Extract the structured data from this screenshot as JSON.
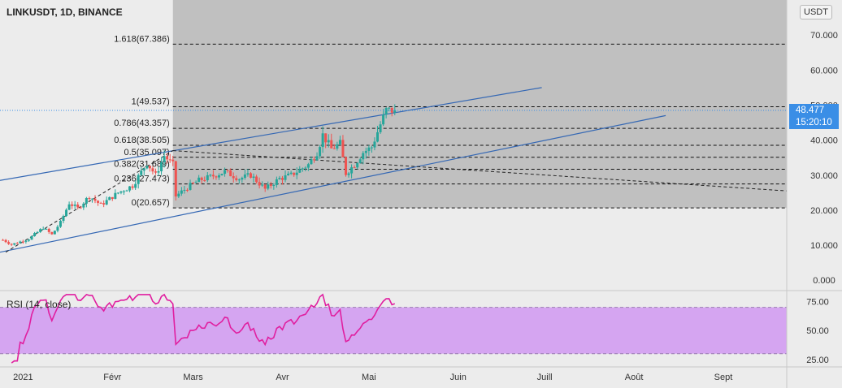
{
  "header": {
    "title": "LINKUSDT, 1D, BINANCE",
    "currency": "USDT"
  },
  "rsi": {
    "label": "RSI (14, close)",
    "ticks": [
      "75.00",
      "50.00",
      "25.00"
    ],
    "tick_values": [
      75,
      50,
      25
    ],
    "band": [
      30,
      70
    ],
    "range": [
      20,
      83
    ],
    "line_color": "#e01fa0",
    "band_color": "#d5a5f1"
  },
  "price_tag": {
    "price": "48.477",
    "countdown": "15:20:10",
    "color": "#3a8ee6"
  },
  "chart_data": {
    "type": "candlestick",
    "symbol": "LINKUSDT",
    "interval": "1D",
    "exchange": "BINANCE",
    "last_price": 48.477,
    "ylim": [
      -2.5,
      80
    ],
    "y_ticks": [
      0,
      10,
      20,
      30,
      40,
      50,
      60,
      70
    ],
    "y_tick_labels": [
      "0.000",
      "10.000",
      "20.000",
      "30.000",
      "40.000",
      "50.000",
      "60.000",
      "70.000"
    ],
    "x_range": [
      "2020-12-24",
      "2021-09-23"
    ],
    "x_ticks": [
      "2021-01-01",
      "2021-02-01",
      "2021-03-01",
      "2021-04-01",
      "2021-05-01",
      "2021-06-01",
      "2021-07-01",
      "2021-08-01",
      "2021-09-01"
    ],
    "x_tick_labels": [
      "2021",
      "Févr",
      "Mars",
      "Avr",
      "Mai",
      "Juin",
      "Juill",
      "Août",
      "Sept"
    ],
    "grid": false,
    "candle_colors": {
      "up": "#26a69a",
      "down": "#ef5350"
    },
    "ohlc_anchors": [
      [
        "2020-12-25",
        11.5
      ],
      [
        "2020-12-28",
        10.2
      ],
      [
        "2021-01-03",
        11.8
      ],
      [
        "2021-01-08",
        15.0
      ],
      [
        "2021-01-11",
        13.0
      ],
      [
        "2021-01-14",
        16.5
      ],
      [
        "2021-01-17",
        22.0
      ],
      [
        "2021-01-20",
        20.5
      ],
      [
        "2021-01-24",
        24.0
      ],
      [
        "2021-01-28",
        21.5
      ],
      [
        "2021-02-03",
        25.0
      ],
      [
        "2021-02-08",
        27.0
      ],
      [
        "2021-02-13",
        33.5
      ],
      [
        "2021-02-16",
        30.0
      ],
      [
        "2021-02-19",
        35.5
      ],
      [
        "2021-02-22",
        33.0
      ],
      [
        "2021-02-23",
        24.0
      ],
      [
        "2021-02-27",
        26.5
      ],
      [
        "2021-03-03",
        28.5
      ],
      [
        "2021-03-07",
        29.5
      ],
      [
        "2021-03-12",
        31.0
      ],
      [
        "2021-03-17",
        29.0
      ],
      [
        "2021-03-21",
        30.0
      ],
      [
        "2021-03-26",
        26.0
      ],
      [
        "2021-03-31",
        29.0
      ],
      [
        "2021-04-04",
        30.0
      ],
      [
        "2021-04-07",
        31.5
      ],
      [
        "2021-04-10",
        33.0
      ],
      [
        "2021-04-13",
        36.5
      ],
      [
        "2021-04-15",
        41.5
      ],
      [
        "2021-04-18",
        37.5
      ],
      [
        "2021-04-21",
        39.0
      ],
      [
        "2021-04-23",
        30.5
      ],
      [
        "2021-04-26",
        33.0
      ],
      [
        "2021-04-29",
        36.5
      ],
      [
        "2021-05-02",
        38.0
      ],
      [
        "2021-05-05",
        44.5
      ],
      [
        "2021-05-07",
        48.5
      ],
      [
        "2021-05-10",
        48.477
      ]
    ],
    "fibonacci": {
      "range": [
        "2021-02-22",
        "2021-09-23"
      ],
      "levels": [
        {
          "label": "0(20.657)",
          "value": 20.657
        },
        {
          "label": "0.236(27.473)",
          "value": 27.473
        },
        {
          "label": "0.382(31.689)",
          "value": 31.689
        },
        {
          "label": "0.5(35.097)",
          "value": 35.097
        },
        {
          "label": "0.618(38.505)",
          "value": 38.505
        },
        {
          "label": "0.786(43.357)",
          "value": 43.357
        },
        {
          "label": "1(49.537)",
          "value": 49.537
        },
        {
          "label": "1.618(67.386)",
          "value": 67.386
        }
      ],
      "shade_color": "#c0c0c0"
    },
    "trendlines": [
      {
        "kind": "channel-upper",
        "from": [
          "2020-12-24",
          28.5
        ],
        "to": [
          "2021-06-30",
          55.0
        ],
        "color": "#3568b4"
      },
      {
        "kind": "channel-lower",
        "from": [
          "2020-12-24",
          8.0
        ],
        "to": [
          "2021-08-12",
          47.0
        ],
        "color": "#3568b4"
      },
      {
        "kind": "dashed-rise",
        "from": [
          "2020-12-26",
          8.0
        ],
        "to": [
          "2021-02-22",
          37.0
        ],
        "color": "#222222"
      },
      {
        "kind": "dashed-fall",
        "from": [
          "2021-02-22",
          37.0
        ],
        "to": [
          "2021-09-23",
          25.5
        ],
        "color": "#222222"
      }
    ]
  }
}
